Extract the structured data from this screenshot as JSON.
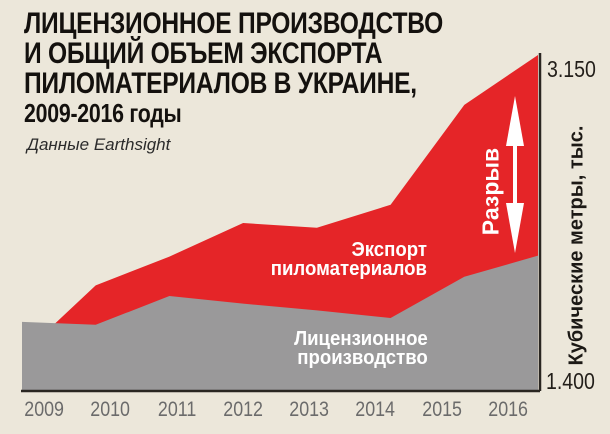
{
  "title": {
    "lines": [
      "ЛИЦЕНЗИОННОЕ ПРОИЗВОДСТВО",
      "И ОБЩИЙ ОБЪЕМ ЭКСПОРТА",
      "ПИЛОМАТЕРИАЛОВ В УКРАИНЕ,"
    ],
    "subtitle": "2009-2016 годы",
    "source": "Данные Earthsight"
  },
  "axis": {
    "y_max_label": "3.150",
    "y_min_label": "1.400",
    "y_title": "Кубические метры, тыс."
  },
  "annotations": {
    "gap_label": "Разрыв",
    "export_label_line1": "Экспорт",
    "export_label_line2": "пиломатериалов",
    "production_label_line1": "Лицензионное",
    "production_label_line2": "производство"
  },
  "colors": {
    "background": "#ece7da",
    "export_red": "#e52528",
    "production_gray": "#9a999a",
    "axis_dark": "#2b2722",
    "year_text": "#6b6b6b"
  },
  "chart_data": {
    "type": "area",
    "title": "Лицензионное производство и общий объем экспорта пиломатериалов в Украине, 2009-2016 годы",
    "source": "Данные Earthsight",
    "categories": [
      "2009",
      "2010",
      "2011",
      "2012",
      "2013",
      "2014",
      "2015",
      "2016"
    ],
    "series": [
      {
        "name": "Экспорт пиломатериалов",
        "color": "#e52528",
        "values": [
          1590,
          1950,
          2100,
          2275,
          2250,
          2370,
          2890,
          3150
        ]
      },
      {
        "name": "Лицензионное производство",
        "color": "#9a999a",
        "values": [
          1760,
          1745,
          1895,
          1855,
          1820,
          1780,
          1995,
          2105
        ]
      }
    ],
    "xlabel": "",
    "ylabel": "Кубические метры, тыс.",
    "ylim": [
      1400,
      3150
    ],
    "y_marks": [
      {
        "value": 3150,
        "label": "3.150"
      },
      {
        "value": 1400,
        "label": "1.400"
      }
    ],
    "legend_position": "inside-area-labels",
    "grid": false,
    "gap_annotation": "Разрыв"
  }
}
